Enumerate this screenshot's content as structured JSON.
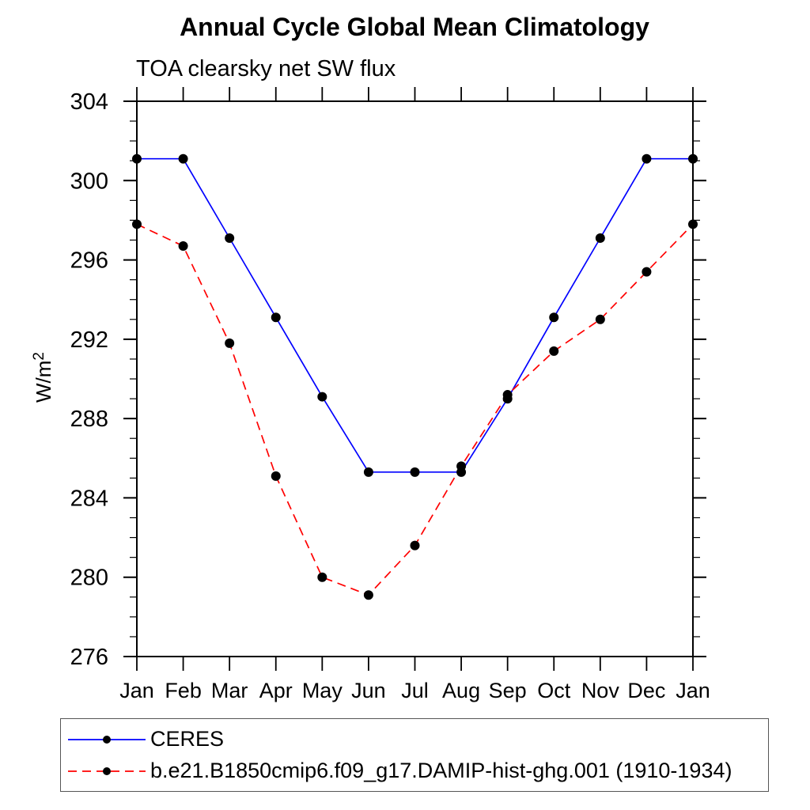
{
  "title": "Annual Cycle Global Mean Climatology",
  "subtitle": "TOA clearsky net SW flux",
  "chart_data": {
    "type": "line",
    "categories": [
      "Jan",
      "Feb",
      "Mar",
      "Apr",
      "May",
      "Jun",
      "Jul",
      "Aug",
      "Sep",
      "Oct",
      "Nov",
      "Dec",
      "Jan"
    ],
    "ylabel": "W/m²",
    "ylabel_parts": {
      "base": "W/m",
      "superscript": "2"
    },
    "ylim": [
      276,
      304
    ],
    "ytick_major_step": 4,
    "ytick_minor_step": 1,
    "ytick_labels": [
      "276",
      "280",
      "284",
      "288",
      "292",
      "296",
      "300",
      "304"
    ],
    "grid": false,
    "legend_position": "bottom-left",
    "axis_color": "#000000",
    "series": [
      {
        "name": "CERES",
        "color": "#0000ff",
        "line_style": "solid",
        "marker": "circle",
        "marker_color": "#000000",
        "values": [
          301.1,
          301.1,
          297.1,
          293.1,
          289.1,
          285.3,
          285.3,
          285.3,
          289.0,
          293.1,
          297.1,
          301.1,
          301.1
        ]
      },
      {
        "name": "b.e21.B1850cmip6.f09_g17.DAMIP-hist-ghg.001 (1910-1934)",
        "color": "#ff0000",
        "line_style": "dashed",
        "marker": "circle",
        "marker_color": "#000000",
        "values": [
          297.8,
          296.7,
          291.8,
          285.1,
          280.0,
          279.1,
          281.6,
          285.6,
          289.2,
          291.4,
          293.0,
          295.4,
          297.8
        ]
      }
    ]
  }
}
